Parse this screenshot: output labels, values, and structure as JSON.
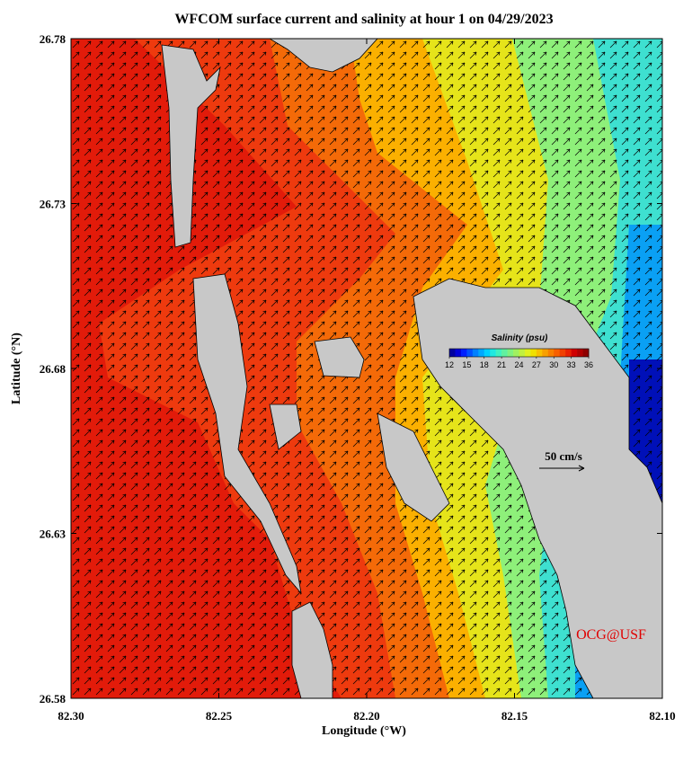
{
  "chart_data": {
    "type": "map",
    "title": "WFCOM surface current and salinity at hour 1 on 04/29/2023",
    "xlabel": "Longitude (°W)",
    "ylabel": "Latitude (°N)",
    "xlim": [
      82.3,
      82.1
    ],
    "xticks": [
      {
        "value": 82.3,
        "label": "82.30"
      },
      82.25,
      {
        "value": 82.2,
        "label": "82.20"
      },
      82.15,
      {
        "value": 82.1,
        "label": "82.10"
      }
    ],
    "ylim": [
      26.58,
      26.78
    ],
    "yticks": [
      26.58,
      26.63,
      26.68,
      26.73,
      26.78
    ],
    "colorbar": {
      "title": "Salinity (psu)",
      "lim": [
        12,
        36
      ],
      "ticks": [
        12,
        15,
        18,
        21,
        24,
        27,
        30,
        33,
        36
      ],
      "colors": [
        "#0000a0",
        "#0000d8",
        "#0020ff",
        "#0050ff",
        "#0080ff",
        "#00a8ff",
        "#00d0ff",
        "#20e8e0",
        "#40f0c0",
        "#60f0a0",
        "#80f080",
        "#a0f060",
        "#c0f040",
        "#e0f020",
        "#f0e000",
        "#f8c000",
        "#f8a000",
        "#f88000",
        "#f86000",
        "#f04000",
        "#e82000",
        "#d00000",
        "#b00000",
        "#900000"
      ]
    },
    "scale_label": "50 cm/s",
    "credit": "OCG@USF"
  }
}
